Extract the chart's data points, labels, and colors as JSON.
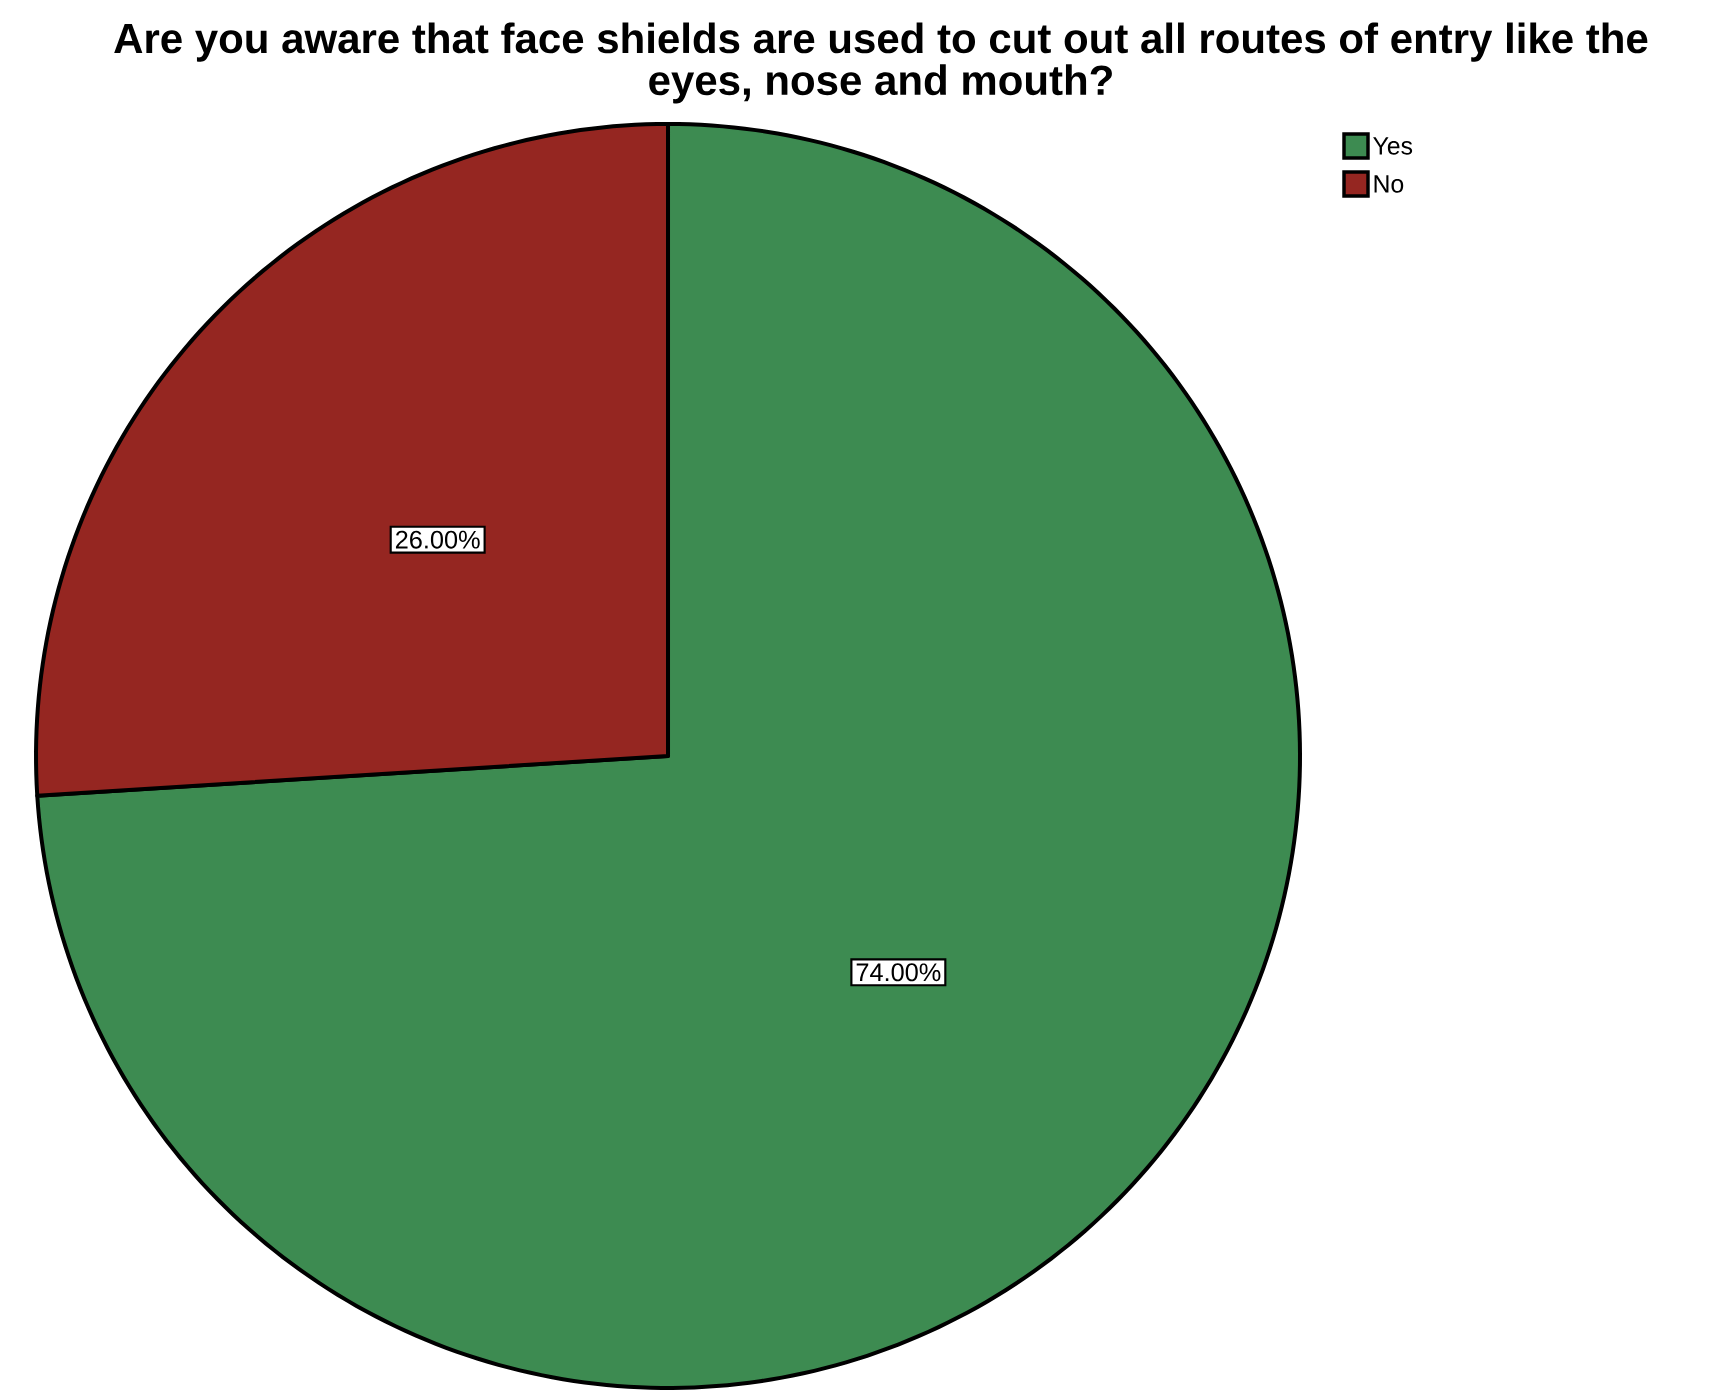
{
  "chart_data": {
    "type": "pie",
    "title": "Are you aware that face shields are used to cut out all routes of entry like the eyes, nose and mouth?",
    "categories": [
      "Yes",
      "No"
    ],
    "values": [
      74,
      26
    ],
    "colors": [
      "#3d8b51",
      "#952621"
    ],
    "value_labels": [
      "74.00%",
      "26.00%"
    ],
    "legend": "top right"
  }
}
